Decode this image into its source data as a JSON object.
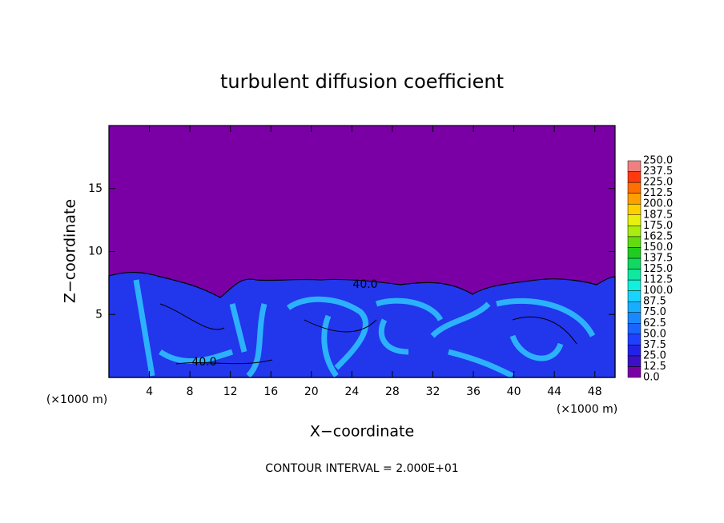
{
  "chart_data": {
    "type": "contour",
    "title": "turbulent diffusion coefficient",
    "x_label": "X−coordinate",
    "y_label": "Z−coordinate",
    "x_unit_left": "(×1000 m)",
    "x_unit_right": "(×1000 m)",
    "footer": "CONTOUR INTERVAL = 2.000E+01",
    "contour_labels": [
      "40.0",
      "40.0"
    ],
    "xlim": [
      0,
      50
    ],
    "ylim": [
      0,
      20
    ],
    "xticks": [
      4,
      8,
      12,
      16,
      20,
      24,
      28,
      32,
      36,
      40,
      44,
      48
    ],
    "yticks": [
      5,
      10,
      15
    ],
    "colorbar": {
      "levels": [
        {
          "value": 0,
          "label": "0.0"
        },
        {
          "value": 12.5,
          "label": "12.5"
        },
        {
          "value": 25,
          "label": "25.0"
        },
        {
          "value": 37.5,
          "label": "37.5"
        },
        {
          "value": 50,
          "label": "50.0"
        },
        {
          "value": 62.5,
          "label": "62.5"
        },
        {
          "value": 75,
          "label": "75.0"
        },
        {
          "value": 87.5,
          "label": "87.5"
        },
        {
          "value": 100,
          "label": "100.0"
        },
        {
          "value": 112.5,
          "label": "112.5"
        },
        {
          "value": 125,
          "label": "125.0"
        },
        {
          "value": 137.5,
          "label": "137.5"
        },
        {
          "value": 150,
          "label": "150.0"
        },
        {
          "value": 162.5,
          "label": "162.5"
        },
        {
          "value": 175,
          "label": "175.0"
        },
        {
          "value": 187.5,
          "label": "187.5"
        },
        {
          "value": 200,
          "label": "200.0"
        },
        {
          "value": 212.5,
          "label": "212.5"
        },
        {
          "value": 225,
          "label": "225.0"
        },
        {
          "value": 237.5,
          "label": "237.5"
        },
        {
          "value": 250,
          "label": "250.0"
        }
      ],
      "colors": [
        "#7a00a6",
        "#3c10c4",
        "#2222e6",
        "#2040ff",
        "#1a64ff",
        "#1a88ff",
        "#18aeff",
        "#18d4ff",
        "#10f0dc",
        "#10e8a0",
        "#10d860",
        "#20cc20",
        "#60dc10",
        "#a8ec10",
        "#e8f010",
        "#ffd000",
        "#ffa000",
        "#ff7000",
        "#ff3a10",
        "#f08080"
      ]
    }
  }
}
